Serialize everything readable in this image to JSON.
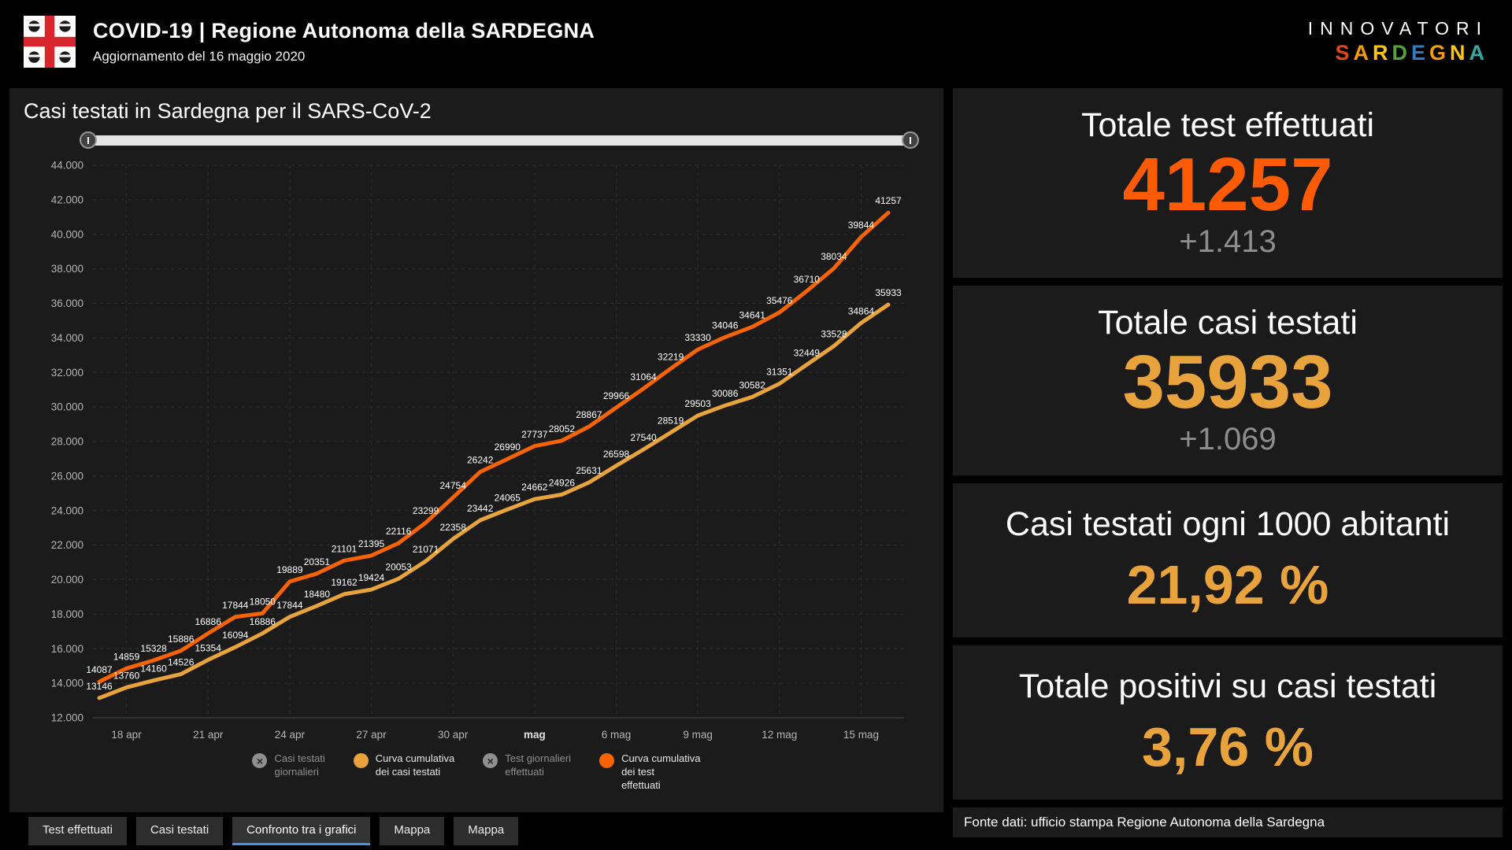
{
  "header": {
    "title": "COVID-19 | Regione Autonoma della SARDEGNA",
    "subtitle": "Aggiornamento del 16 maggio 2020",
    "logo": "sardegna-flag-icon",
    "brand": {
      "line1": "INNOVATORI",
      "letters": [
        {
          "ch": "S",
          "color": "#e8431f"
        },
        {
          "ch": "A",
          "color": "#f59c07"
        },
        {
          "ch": "R",
          "color": "#fdc513"
        },
        {
          "ch": "D",
          "color": "#52a53a"
        },
        {
          "ch": "E",
          "color": "#2f7cc3"
        },
        {
          "ch": "G",
          "color": "#f59c07"
        },
        {
          "ch": "N",
          "color": "#fdc513"
        },
        {
          "ch": "A",
          "color": "#3aa7a0"
        }
      ]
    }
  },
  "chart_panel": {
    "title": "Casi testati in Sardegna per il SARS-CoV-2",
    "legend": [
      {
        "lines": [
          "Casi testati",
          "giornalieri"
        ],
        "color": "#8f8f8f",
        "disabled": true
      },
      {
        "lines": [
          "Curva cumulativa",
          "dei casi testati"
        ],
        "color": "#e8a33d",
        "disabled": false
      },
      {
        "lines": [
          "Test giornalieri",
          "effettuati"
        ],
        "color": "#8f8f8f",
        "disabled": true
      },
      {
        "lines": [
          "Curva cumulativa",
          "dei test",
          "effettuati"
        ],
        "color": "#f96302",
        "disabled": false
      }
    ]
  },
  "chart_data": {
    "type": "line",
    "title": "Casi testati in Sardegna per il SARS-CoV-2",
    "grid": "dashed",
    "ylim": [
      12000,
      44000
    ],
    "y_ticks": [
      12000,
      14000,
      16000,
      18000,
      20000,
      22000,
      24000,
      26000,
      28000,
      30000,
      32000,
      34000,
      36000,
      38000,
      40000,
      42000,
      44000
    ],
    "y_tick_labels": [
      "12.000",
      "14.000",
      "16.000",
      "18.000",
      "20.000",
      "22.000",
      "24.000",
      "26.000",
      "28.000",
      "30.000",
      "32.000",
      "34.000",
      "36.000",
      "38.000",
      "40.000",
      "42.000",
      "44.000"
    ],
    "x_ticks": [
      {
        "index": 1,
        "label": "18 apr",
        "bold": false
      },
      {
        "index": 4,
        "label": "21 apr",
        "bold": false
      },
      {
        "index": 7,
        "label": "24 apr",
        "bold": false
      },
      {
        "index": 10,
        "label": "27 apr",
        "bold": false
      },
      {
        "index": 13,
        "label": "30 apr",
        "bold": false
      },
      {
        "index": 16,
        "label": "mag",
        "bold": true
      },
      {
        "index": 19,
        "label": "6 mag",
        "bold": false
      },
      {
        "index": 22,
        "label": "9 mag",
        "bold": false
      },
      {
        "index": 25,
        "label": "12 mag",
        "bold": false
      },
      {
        "index": 28,
        "label": "15 mag",
        "bold": false
      }
    ],
    "series": [
      {
        "name": "Curva cumulativa dei test effettuati",
        "color": "#f96302",
        "label_position": "above",
        "values": [
          14087,
          14859,
          15328,
          15886,
          16886,
          17844,
          18050,
          19889,
          20351,
          21101,
          21395,
          22116,
          23299,
          24754,
          26242,
          26990,
          27737,
          28052,
          28867,
          29966,
          31064,
          32219,
          33330,
          34046,
          34641,
          35476,
          36710,
          38034,
          39844,
          41257
        ]
      },
      {
        "name": "Curva cumulativa dei casi testati",
        "color": "#e8a33d",
        "label_position": "above",
        "values": [
          13146,
          13760,
          14160,
          14526,
          15354,
          16094,
          16886,
          17844,
          18480,
          19162,
          19424,
          20053,
          21071,
          22358,
          23442,
          24065,
          24662,
          24926,
          25631,
          26598,
          27540,
          28519,
          29503,
          30086,
          30582,
          31351,
          32449,
          33528,
          34864,
          35933
        ]
      }
    ],
    "hidden_series": [
      "Casi testati giornalieri",
      "Test giornalieri effettuati"
    ],
    "legend_position": "bottom"
  },
  "tabs": [
    {
      "label": "Test effettuati",
      "active": false
    },
    {
      "label": "Casi testati",
      "active": false
    },
    {
      "label": "Confronto tra i grafici",
      "active": true
    },
    {
      "label": "Mappa",
      "active": false
    },
    {
      "label": "Mappa",
      "active": false
    }
  ],
  "stats": [
    {
      "title": "Totale test effettuati",
      "value": "41257",
      "delta": "+1.413",
      "value_color": "#ff5a05"
    },
    {
      "title": "Totale casi testati",
      "value": "35933",
      "delta": "+1.069",
      "value_color": "#e8a33d"
    },
    {
      "title": "Casi testati ogni 1000 abitanti",
      "value": "21,92 %",
      "value_color": "#e8a33d"
    },
    {
      "title": "Totale positivi su casi testati",
      "value": "3,76 %",
      "value_color": "#e8a33d"
    }
  ],
  "footer": {
    "source": "Fonte dati: ufficio stampa Regione Autonoma della Sardegna"
  },
  "colors": {
    "background": "#000000",
    "panel": "#1b1b1b",
    "orange": "#f96302",
    "orange_value": "#ff5a05",
    "amber": "#e8a33d",
    "delta_gray": "#8d8d8d",
    "tab_underline": "#3f94e8",
    "grid": "#2e2e2e"
  }
}
